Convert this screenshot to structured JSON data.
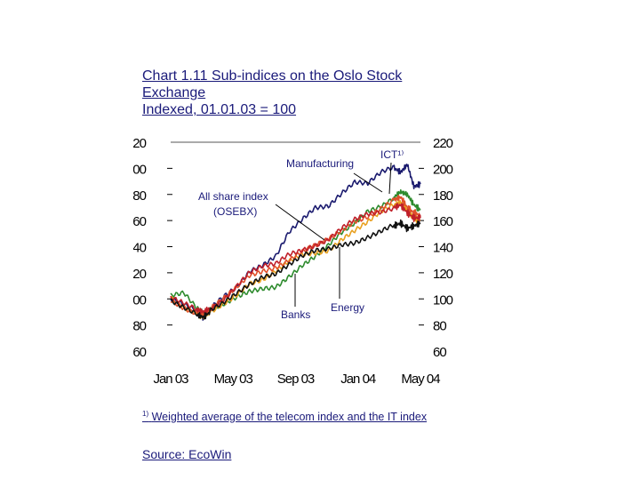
{
  "header": {
    "title_line1": "Chart 1.11 Sub-indices on the Oslo Stock",
    "title_line2": "Exchange",
    "subtitle": "Indexed, 01.01.03 = 100"
  },
  "footnote": {
    "marker": "1)",
    "text": "Weighted average of the telecom index and the IT index"
  },
  "source": "Source: EcoWin",
  "chart_data": {
    "type": "line",
    "title": "Sub-indices on the Oslo Stock Exchange",
    "ylim": [
      60,
      220
    ],
    "yticks": [
      60,
      80,
      100,
      120,
      140,
      160,
      180,
      200,
      220
    ],
    "xticks": [
      "Jan 03",
      "May 03",
      "Sep 03",
      "Jan 04",
      "May 04"
    ],
    "x_range_months": [
      0,
      19
    ],
    "grid": false,
    "annotations": [
      "Manufacturing",
      "ICT¹⁾",
      "All share index",
      "(OSEBX)",
      "Banks",
      "Energy"
    ],
    "series": [
      {
        "color": "#1a1a6e",
        "x": [
          0,
          1,
          2,
          2.5,
          3,
          4,
          5,
          6,
          7,
          8,
          9,
          10,
          11,
          12,
          13,
          14,
          15,
          16,
          17,
          17.5,
          18,
          18.5,
          19
        ],
        "values": [
          100,
          95,
          90,
          86,
          92,
          102,
          110,
          122,
          126,
          132,
          150,
          160,
          170,
          172,
          182,
          190,
          188,
          196,
          200,
          197,
          203,
          186,
          188
        ]
      },
      {
        "color": "#2e8b2e",
        "x": [
          0,
          1,
          2,
          2.5,
          3,
          4,
          5,
          6,
          7,
          8,
          9,
          10,
          11,
          12,
          13,
          14,
          15,
          16,
          17,
          17.5,
          18,
          18.5,
          19
        ],
        "values": [
          103,
          106,
          94,
          88,
          92,
          95,
          100,
          105,
          108,
          110,
          118,
          126,
          132,
          140,
          150,
          158,
          168,
          172,
          178,
          182,
          180,
          172,
          168
        ]
      },
      {
        "color": "#e8a020",
        "x": [
          0,
          1,
          2,
          2.5,
          3,
          4,
          5,
          6,
          7,
          8,
          9,
          10,
          11,
          12,
          13,
          14,
          15,
          16,
          17,
          17.5,
          18,
          18.5,
          19
        ],
        "values": [
          100,
          92,
          88,
          86,
          90,
          97,
          104,
          112,
          114,
          120,
          128,
          134,
          136,
          138,
          146,
          152,
          158,
          166,
          172,
          174,
          168,
          162,
          160
        ]
      },
      {
        "color": "#e0502a",
        "x": [
          0,
          1,
          2,
          2.5,
          3,
          4,
          5,
          6,
          7,
          8,
          9,
          10,
          11,
          12,
          13,
          14,
          15,
          16,
          17,
          17.5,
          18,
          18.5,
          19
        ],
        "values": [
          100,
          94,
          89,
          88,
          92,
          99,
          108,
          118,
          122,
          125,
          130,
          136,
          140,
          145,
          152,
          160,
          164,
          170,
          176,
          178,
          170,
          166,
          164
        ]
      },
      {
        "color": "#c0202a",
        "x": [
          0,
          1,
          2,
          2.5,
          3,
          4,
          5,
          6,
          7,
          8,
          9,
          10,
          11,
          12,
          13,
          14,
          15,
          16,
          17,
          17.5,
          18,
          18.5,
          19
        ],
        "values": [
          100,
          96,
          92,
          90,
          93,
          100,
          110,
          120,
          124,
          126,
          134,
          138,
          142,
          146,
          154,
          160,
          164,
          166,
          170,
          172,
          166,
          162,
          162
        ]
      },
      {
        "color": "#111111",
        "x": [
          0,
          1,
          2,
          2.5,
          3,
          4,
          5,
          6,
          7,
          8,
          9,
          10,
          11,
          12,
          13,
          14,
          15,
          16,
          17,
          17.5,
          18,
          18.5,
          19
        ],
        "values": [
          100,
          94,
          88,
          86,
          90,
          96,
          104,
          112,
          118,
          120,
          126,
          132,
          136,
          138,
          142,
          144,
          148,
          152,
          156,
          158,
          154,
          156,
          158
        ]
      }
    ]
  }
}
